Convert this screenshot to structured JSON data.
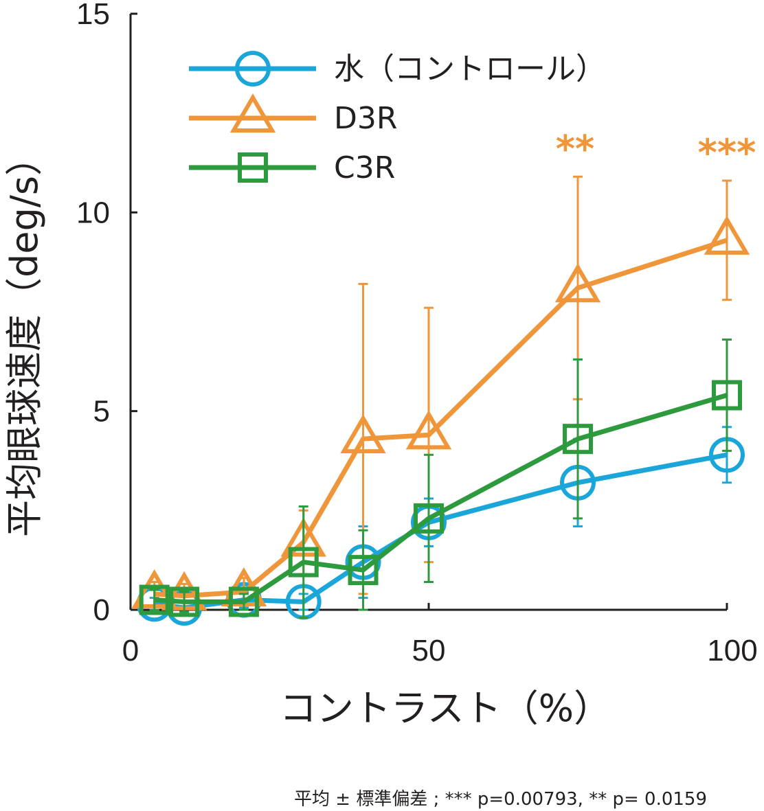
{
  "chart_data": {
    "type": "line",
    "title": "",
    "xlabel": "コントラスト（%）",
    "ylabel": "平均眼球速度（deg/s）",
    "xlim": [
      0,
      100
    ],
    "ylim": [
      0,
      15
    ],
    "xticks": [
      0,
      50,
      100
    ],
    "yticks": [
      0,
      5,
      10,
      15
    ],
    "grid": false,
    "legend_position": "top-left",
    "colors": {
      "water": "#1ba6d9",
      "d3r": "#f0963a",
      "c3r": "#2e9a3e",
      "axis": "#231f20"
    },
    "series": [
      {
        "key": "water",
        "name": "水（コントロール）",
        "marker": "circle",
        "x": [
          4,
          9,
          19,
          29,
          39,
          50,
          75,
          100
        ],
        "y": [
          0.15,
          0.05,
          0.25,
          0.2,
          1.2,
          2.2,
          3.2,
          3.9
        ],
        "err": [
          0.15,
          0.15,
          0.2,
          0.2,
          0.9,
          0.6,
          1.1,
          0.7
        ]
      },
      {
        "key": "d3r",
        "name": "D3R",
        "marker": "triangle",
        "x": [
          4,
          9,
          19,
          29,
          39,
          50,
          75,
          100
        ],
        "y": [
          0.4,
          0.35,
          0.45,
          1.7,
          4.3,
          4.4,
          8.1,
          9.3
        ],
        "err": [
          0.3,
          0.3,
          0.35,
          0.8,
          3.9,
          3.2,
          2.8,
          1.5
        ]
      },
      {
        "key": "c3r",
        "name": "C3R",
        "marker": "square",
        "x": [
          4,
          9,
          19,
          29,
          39,
          50,
          75,
          100
        ],
        "y": [
          0.25,
          0.2,
          0.2,
          1.2,
          1.0,
          2.3,
          4.3,
          5.4
        ],
        "err": [
          0.25,
          0.25,
          0.2,
          1.4,
          1.0,
          1.6,
          2.0,
          1.4
        ]
      }
    ],
    "annotations": [
      {
        "x": 75,
        "series": "d3r",
        "text": "**"
      },
      {
        "x": 100,
        "series": "d3r",
        "text": "***"
      }
    ],
    "footnote": "平均 ± 標準偏差 ; *** p=0.00793, ** p= 0.0159"
  }
}
